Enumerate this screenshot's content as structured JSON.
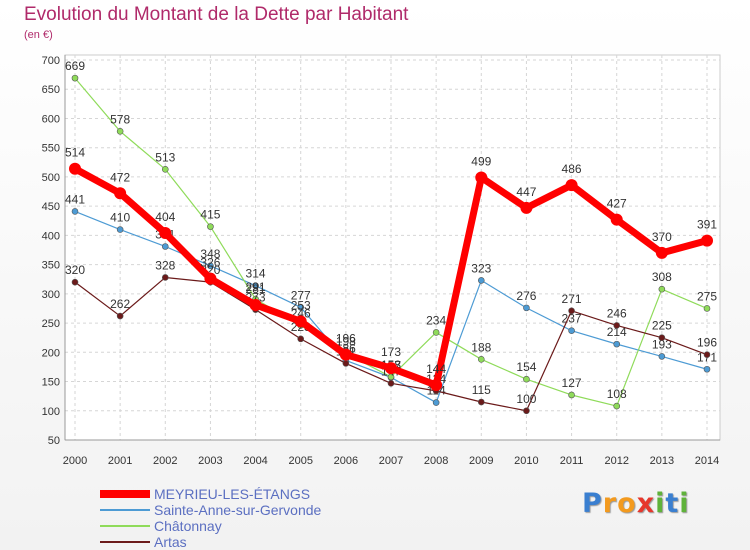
{
  "chart_data": {
    "type": "line",
    "title": "Evolution du Montant de la Dette par Habitant",
    "subtitle": "(en €)",
    "x": [
      "2000",
      "2001",
      "2002",
      "2003",
      "2004",
      "2005",
      "2006",
      "2007",
      "2008",
      "2009",
      "2010",
      "2011",
      "2012",
      "2013",
      "2014"
    ],
    "yticks": [
      "50",
      "100",
      "150",
      "200",
      "250",
      "300",
      "350",
      "400",
      "450",
      "500",
      "550",
      "600",
      "650",
      "700"
    ],
    "ylim": [
      50,
      700
    ],
    "grid": true,
    "legend_position": "bottom-left",
    "series": [
      {
        "name": "Sainte-Anne-sur-Gervonde",
        "color": "#4d9bd4",
        "values": [
          441,
          410,
          381,
          348,
          314,
          277,
          186,
          157,
          114,
          323,
          276,
          237,
          214,
          193,
          171
        ]
      },
      {
        "name": "Châtonnay",
        "color": "#8fdb5a",
        "values": [
          669,
          578,
          513,
          415,
          291,
          246,
          198,
          158,
          234,
          188,
          154,
          127,
          108,
          308,
          275
        ]
      },
      {
        "name": "Artas",
        "color": "#6b1a1a",
        "values": [
          320,
          262,
          328,
          320,
          273,
          223,
          181,
          147,
          134,
          115,
          100,
          271,
          246,
          225,
          196
        ]
      },
      {
        "name": "MEYRIEU-LES-ÉTANGS",
        "color": "#ff0000",
        "values": [
          514,
          472,
          404,
          326,
          281,
          253,
          196,
          173,
          144,
          499,
          447,
          486,
          427,
          370,
          391
        ]
      }
    ],
    "legend_order": [
      "MEYRIEU-LES-ÉTANGS",
      "Sainte-Anne-sur-Gervonde",
      "Châtonnay",
      "Artas"
    ]
  },
  "logo": {
    "text": "Proxiti",
    "letters": [
      "P",
      "r",
      "o",
      "x",
      "i",
      "t",
      "i"
    ],
    "colors": [
      "#3a7fd0",
      "#f39a1e",
      "#f39a1e",
      "#e6372c",
      "#5fb23a",
      "#3a7fd0",
      "#5fb23a"
    ]
  }
}
